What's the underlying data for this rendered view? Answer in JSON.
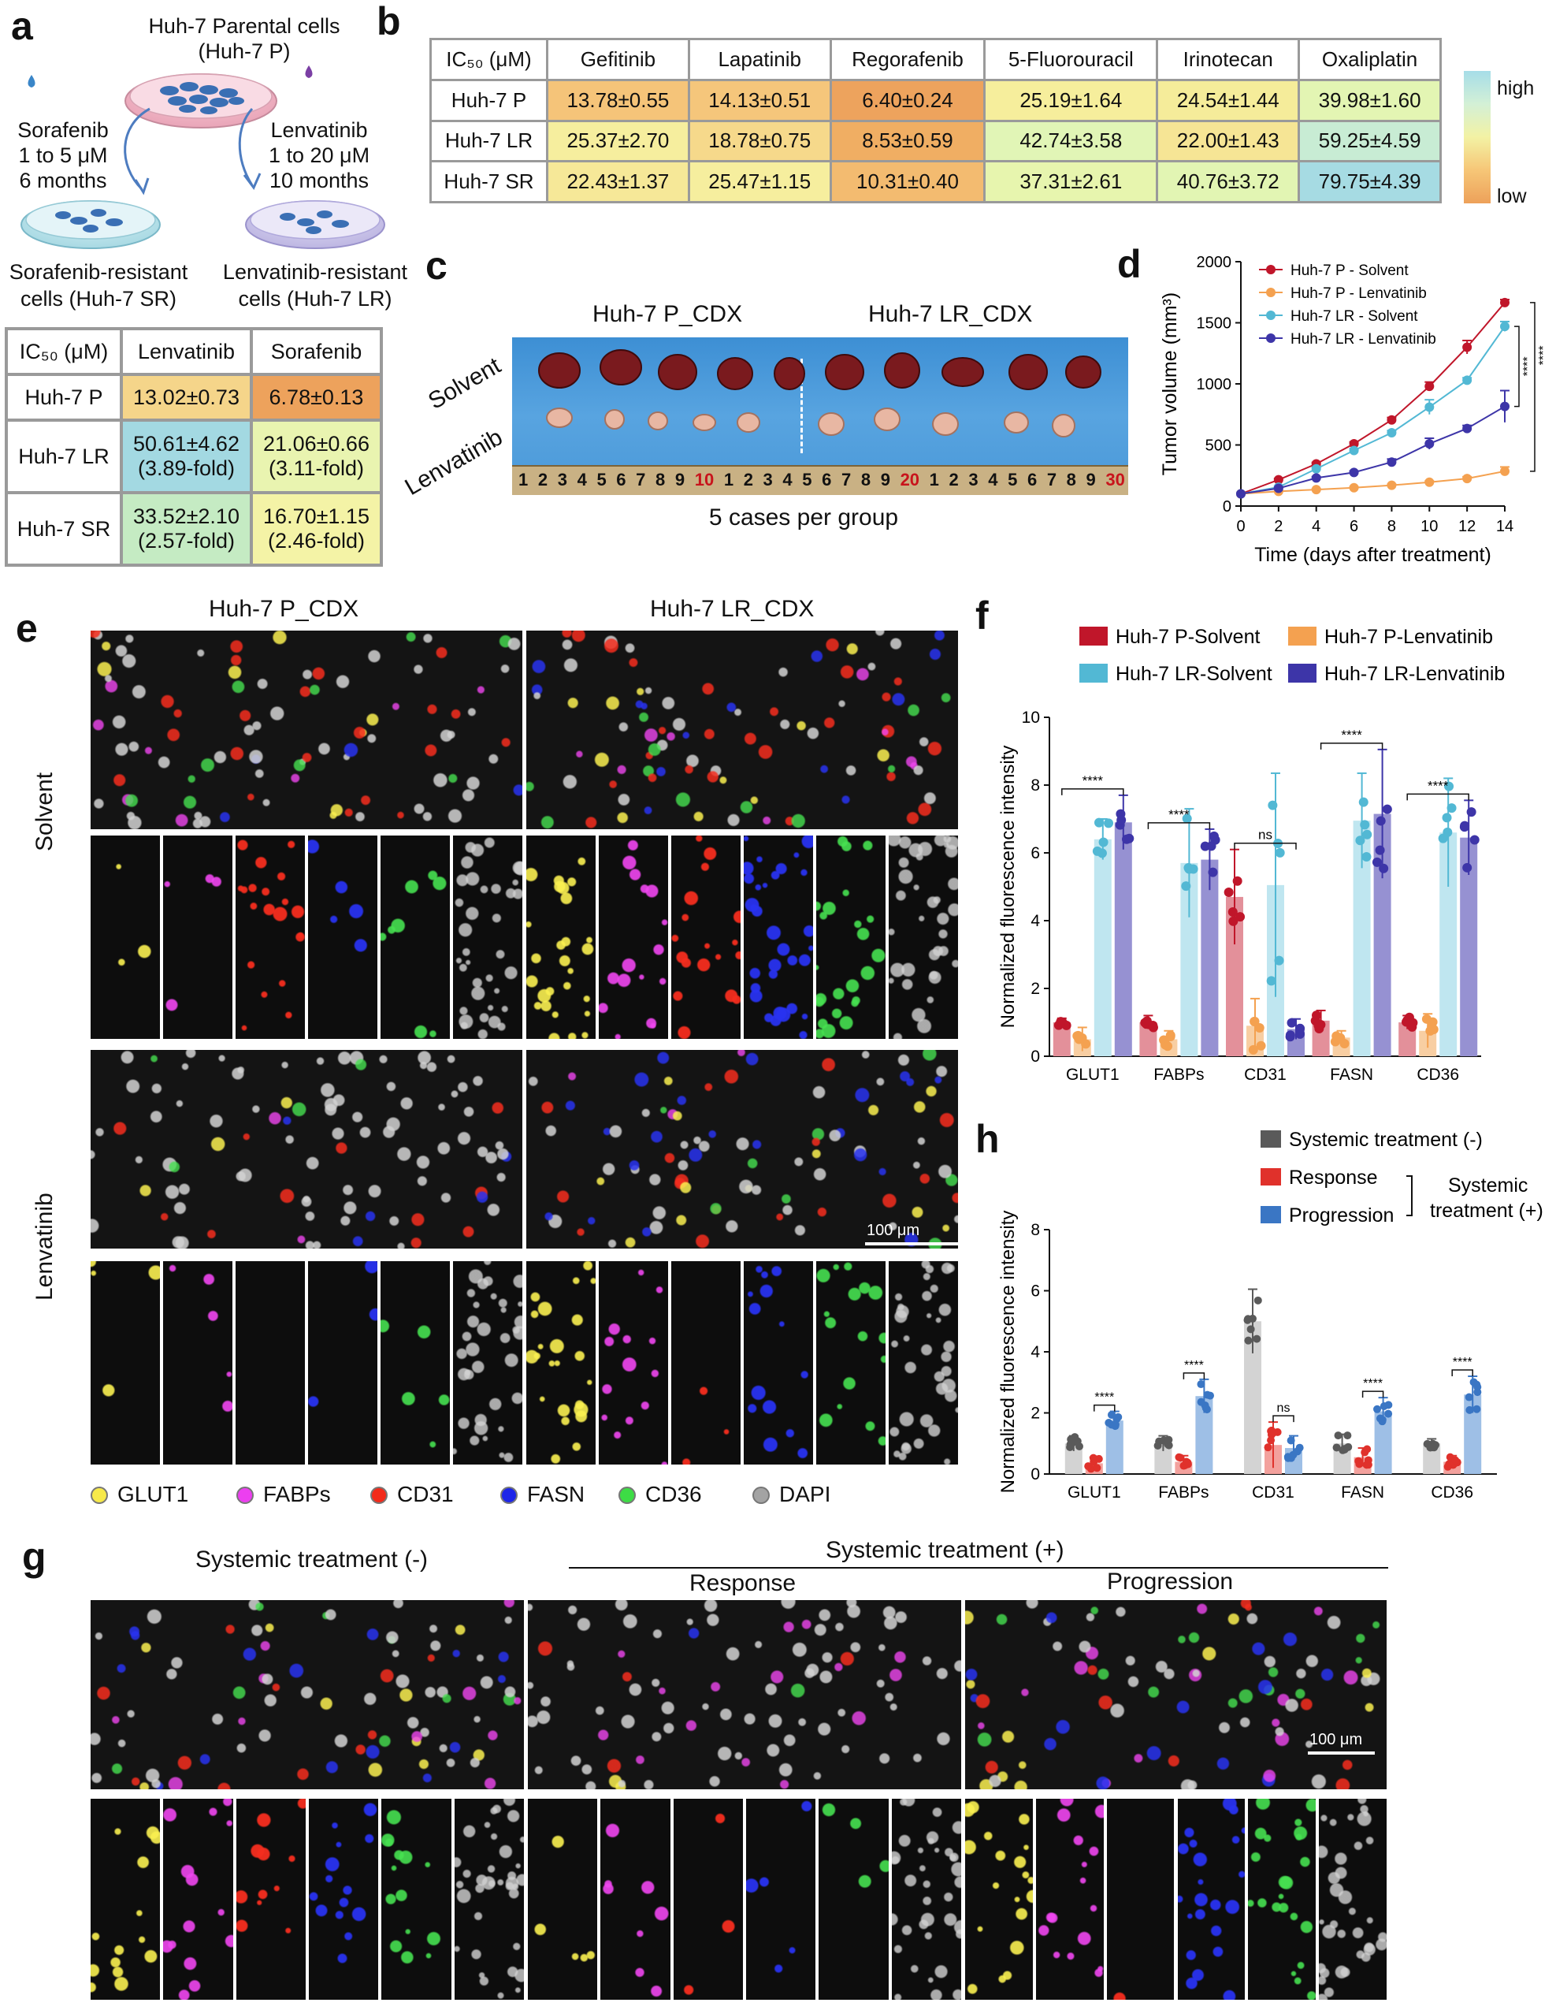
{
  "panels": {
    "a": "a",
    "b": "b",
    "c": "c",
    "d": "d",
    "e": "e",
    "f": "f",
    "g": "g",
    "h": "h"
  },
  "panel_a": {
    "parental_line1": "Huh-7 Parental cells",
    "parental_line2": "(Huh-7 P)",
    "sora_label": [
      "Sorafenib",
      "1 to 5 μM",
      "6 months"
    ],
    "lenva_label": [
      "Lenvatinib",
      "1 to 20 μM",
      "10 months"
    ],
    "sr_caption": [
      "Sorafenib-resistant",
      "cells (Huh-7 SR)"
    ],
    "lr_caption": [
      "Lenvatinib-resistant",
      "cells (Huh-7 LR)"
    ],
    "table": {
      "header": [
        "IC₅₀ (μM)",
        "Lenvatinib",
        "Sorafenib"
      ],
      "rows": [
        {
          "name": "Huh-7 P",
          "cells": [
            [
              "13.02±0.73",
              ""
            ],
            [
              "6.78±0.13",
              ""
            ]
          ],
          "colors": [
            "#f5d58a",
            "#eda25c"
          ]
        },
        {
          "name": "Huh-7 LR",
          "cells": [
            [
              "50.61±4.62",
              "(3.89-fold)"
            ],
            [
              "21.06±0.66",
              "(3.11-fold)"
            ]
          ],
          "colors": [
            "#a3d9e2",
            "#e9f4b0"
          ]
        },
        {
          "name": "Huh-7 SR",
          "cells": [
            [
              "33.52±2.10",
              "(2.57-fold)"
            ],
            [
              "16.70±1.15",
              "(2.46-fold)"
            ]
          ],
          "colors": [
            "#c5ebc3",
            "#f4f3a6"
          ]
        }
      ]
    }
  },
  "panel_b": {
    "header": [
      "IC₅₀ (μM)",
      "Gefitinib",
      "Lapatinib",
      "Regorafenib",
      "5-Fluorouracil",
      "Irinotecan",
      "Oxaliplatin"
    ],
    "rows": [
      {
        "name": "Huh-7 P",
        "vals": [
          "13.78±0.55",
          "14.13±0.51",
          "6.40±0.24",
          "25.19±1.64",
          "24.54±1.44",
          "39.98±1.60"
        ],
        "colors": [
          "#f5c479",
          "#f5c67b",
          "#eda35d",
          "#f6ee9c",
          "#f5ec9a",
          "#e3f5b3"
        ]
      },
      {
        "name": "Huh-7 LR",
        "vals": [
          "25.37±2.70",
          "18.78±0.75",
          "8.53±0.59",
          "42.74±3.58",
          "22.00±1.43",
          "59.25±4.59"
        ],
        "colors": [
          "#f6ee9e",
          "#f6d98b",
          "#f0ae63",
          "#e1f5b6",
          "#f6e595",
          "#c8ecd4"
        ]
      },
      {
        "name": "Huh-7 SR",
        "vals": [
          "22.43±1.37",
          "25.47±1.15",
          "10.31±0.40",
          "37.31±2.61",
          "40.76±3.72",
          "79.75±4.39"
        ],
        "colors": [
          "#f6e898",
          "#f6ee9e",
          "#f3bb70",
          "#e7f5ae",
          "#e2f5b3",
          "#a6dbe3"
        ]
      }
    ],
    "scale_high": "high",
    "scale_low": "low"
  },
  "panel_c": {
    "group1": "Huh-7 P_CDX",
    "group2": "Huh-7 LR_CDX",
    "row1": "Solvent",
    "row2": "Lenvatinib",
    "caption": "5 cases per group",
    "ruler": [
      "1",
      "2",
      "3",
      "4",
      "5",
      "6",
      "7",
      "8",
      "9",
      "10",
      "1",
      "2",
      "3",
      "4",
      "5",
      "6",
      "7",
      "8",
      "9",
      "20",
      "1",
      "2",
      "3",
      "4",
      "5",
      "6",
      "7",
      "8",
      "9",
      "30"
    ]
  },
  "panel_e": {
    "col1": "Huh-7 P_CDX",
    "col2": "Huh-7 LR_CDX",
    "row1": "Solvent",
    "row2": "Lenvatinib",
    "scale": "100 μm",
    "legend": [
      {
        "name": "GLUT1",
        "color": "#f7e94a"
      },
      {
        "name": "FABPs",
        "color": "#ec3ff0"
      },
      {
        "name": "CD31",
        "color": "#f22a1a"
      },
      {
        "name": "FASN",
        "color": "#1d25e8"
      },
      {
        "name": "CD36",
        "color": "#3ddc45"
      },
      {
        "name": "DAPI",
        "color": "#a3a3a3"
      }
    ]
  },
  "panel_g": {
    "title_neg": "Systemic treatment (-)",
    "title_pos": "Systemic treatment (+)",
    "sub_response": "Response",
    "sub_progression": "Progression",
    "scale": "100 μm"
  },
  "chart_data": [
    {
      "panel": "d",
      "type": "line",
      "xlabel": "Time (days after treatment)",
      "ylabel": "Tumor volume (mm³)",
      "x": [
        0,
        2,
        4,
        6,
        8,
        10,
        12,
        14
      ],
      "xlim": [
        0,
        14
      ],
      "ylim": [
        0,
        2000
      ],
      "yticks": [
        0,
        500,
        1000,
        1500,
        2000
      ],
      "series": [
        {
          "name": "Huh-7 P - Solvent",
          "color": "#c0162a",
          "values": [
            100,
            215,
            345,
            510,
            705,
            980,
            1300,
            1665
          ],
          "err": [
            5,
            10,
            12,
            15,
            20,
            35,
            55,
            25
          ]
        },
        {
          "name": "Huh-7 P - Lenvatinib",
          "color": "#f4a150",
          "values": [
            100,
            120,
            135,
            150,
            170,
            195,
            225,
            285
          ],
          "err": [
            4,
            6,
            6,
            8,
            8,
            10,
            15,
            35
          ]
        },
        {
          "name": "Huh-7 LR - Solvent",
          "color": "#52b8d4",
          "values": [
            100,
            155,
            305,
            455,
            600,
            810,
            1030,
            1470
          ],
          "err": [
            5,
            8,
            12,
            15,
            18,
            60,
            20,
            40
          ]
        },
        {
          "name": "Huh-7 LR - Lenvatinib",
          "color": "#3d35a8",
          "values": [
            100,
            145,
            230,
            275,
            360,
            510,
            635,
            815
          ],
          "err": [
            5,
            8,
            10,
            12,
            25,
            45,
            25,
            130
          ]
        }
      ],
      "annotations": [
        "****",
        "****"
      ]
    },
    {
      "panel": "f",
      "type": "bar",
      "ylabel": "Normalized fluorescence intensity",
      "categories": [
        "GLUT1",
        "FABPs",
        "CD31",
        "FASN",
        "CD36"
      ],
      "ylim": [
        0,
        10
      ],
      "yticks": [
        0,
        2,
        4,
        6,
        8,
        10
      ],
      "series": [
        {
          "name": "Huh-7 P-Solvent",
          "color": "#c0162a",
          "fill": "#e3909a",
          "values": [
            1,
            1,
            4.7,
            1.05,
            1
          ],
          "err": [
            0.12,
            0.2,
            1.4,
            0.3,
            0.2
          ]
        },
        {
          "name": "Huh-7 P-Lenvatinib",
          "color": "#f4a150",
          "fill": "#f8cea2",
          "values": [
            0.5,
            0.5,
            0.9,
            0.55,
            0.75
          ],
          "err": [
            0.35,
            0.25,
            0.8,
            0.2,
            0.5
          ]
        },
        {
          "name": "Huh-7 LR-Solvent",
          "color": "#52b8d4",
          "fill": "#bfe6f0",
          "values": [
            6.4,
            5.7,
            5.05,
            6.95,
            6.6
          ],
          "err": [
            0.6,
            1.6,
            3.3,
            1.4,
            1.6
          ]
        },
        {
          "name": "Huh-7 LR-Lenvatinib",
          "color": "#3d35a8",
          "fill": "#9691d2",
          "values": [
            6.9,
            5.8,
            0.8,
            7.15,
            6.45
          ],
          "err": [
            0.8,
            0.9,
            0.3,
            1.9,
            1.1
          ]
        }
      ],
      "sig": [
        "****",
        "****",
        "ns",
        "****",
        "****"
      ]
    },
    {
      "panel": "h",
      "type": "bar",
      "ylabel": "Normalized fluorescence intensity",
      "categories": [
        "GLUT1",
        "FABPs",
        "CD31",
        "FASN",
        "CD36"
      ],
      "ylim": [
        0,
        8
      ],
      "yticks": [
        0,
        2,
        4,
        6,
        8
      ],
      "legend_group": "Systemic treatment (+)",
      "series": [
        {
          "name": "Systemic treatment (-)",
          "color": "#5a5a5a",
          "fill": "#d3d3d3",
          "values": [
            1,
            1,
            5,
            1,
            1
          ],
          "err": [
            0.25,
            0.25,
            1.05,
            0.3,
            0.15
          ]
        },
        {
          "name": "Response",
          "color": "#e0312b",
          "fill": "#f3a19d",
          "values": [
            0.35,
            0.4,
            0.95,
            0.55,
            0.4
          ],
          "err": [
            0.2,
            0.2,
            0.75,
            0.3,
            0.2
          ]
        },
        {
          "name": "Progression",
          "color": "#3a76c4",
          "fill": "#9ebfe6",
          "values": [
            1.75,
            2.55,
            0.85,
            2.05,
            2.6
          ],
          "err": [
            0.3,
            0.55,
            0.4,
            0.45,
            0.6
          ]
        }
      ],
      "sig": [
        "****",
        "****",
        "ns",
        "****",
        "****"
      ]
    }
  ]
}
